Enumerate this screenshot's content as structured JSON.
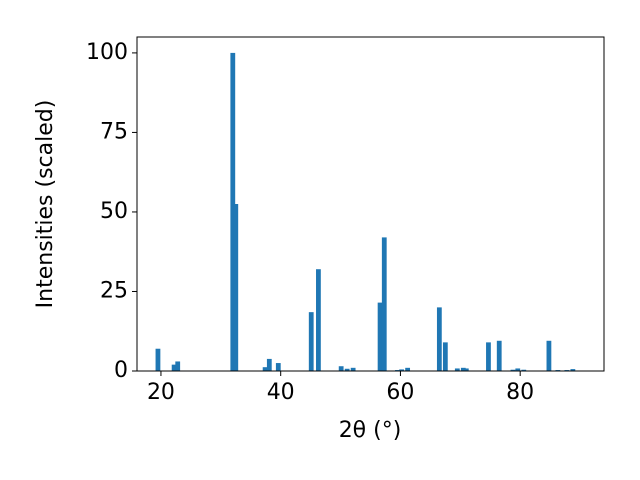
{
  "chart_data": {
    "type": "bar",
    "xlabel": "2θ (°)",
    "ylabel": "Intensities (scaled)",
    "x": [
      19.5,
      22.2,
      22.8,
      32.0,
      32.5,
      37.4,
      38.1,
      39.6,
      45.1,
      46.3,
      50.1,
      51.1,
      52.1,
      56.6,
      57.3,
      59.5,
      60.2,
      61.2,
      66.5,
      67.5,
      69.5,
      70.5,
      71.0,
      74.7,
      76.5,
      78.8,
      79.6,
      80.6,
      84.8,
      86.3,
      87.8,
      88.8
    ],
    "values": [
      7,
      2,
      3,
      100,
      52.5,
      1.2,
      3.8,
      2.5,
      18.5,
      32,
      1.5,
      0.7,
      1,
      21.5,
      42,
      0.3,
      0.5,
      1,
      20,
      9,
      0.8,
      1,
      0.8,
      9,
      9.5,
      0.4,
      0.8,
      0.4,
      9.5,
      0.3,
      0.3,
      0.6
    ],
    "color": "#1f77b4",
    "xlim": [
      16,
      94
    ],
    "ylim": [
      0,
      105
    ],
    "xticks": [
      20,
      40,
      60,
      80
    ],
    "yticks": [
      0,
      25,
      50,
      75,
      100
    ]
  }
}
